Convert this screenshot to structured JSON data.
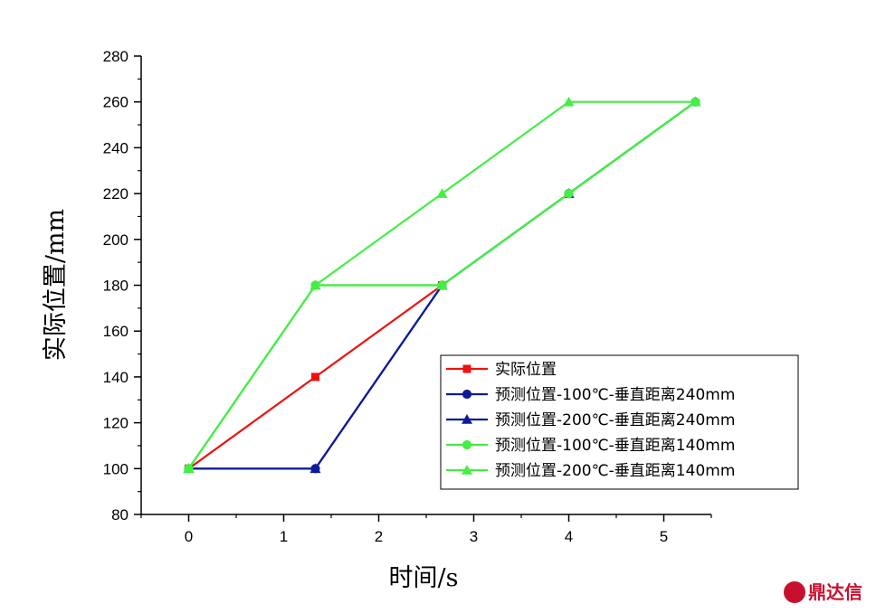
{
  "chart_data": {
    "type": "line",
    "xlabel": "时间/s",
    "ylabel": "实际位置/mm",
    "xlim": [
      -0.5,
      5.5
    ],
    "ylim": [
      80,
      280
    ],
    "xticks": [
      0,
      1,
      2,
      3,
      4,
      5
    ],
    "yticks": [
      80,
      100,
      120,
      140,
      160,
      180,
      200,
      220,
      240,
      260,
      280
    ],
    "legend_position": "bottom-right",
    "series": [
      {
        "name": "实际位置",
        "color": "#ee1111",
        "marker": "square",
        "x": [
          0,
          1.333,
          2.667
        ],
        "y": [
          100,
          140,
          180
        ]
      },
      {
        "name": "预测位置-100℃-垂直距离240mm",
        "color": "#0d1b99",
        "marker": "circle",
        "x": [
          0,
          1.333,
          2.667,
          4.0,
          5.333
        ],
        "y": [
          100,
          100,
          180,
          220,
          260
        ]
      },
      {
        "name": "预测位置-200℃-垂直距离240mm",
        "color": "#0d1b99",
        "marker": "triangle",
        "x": [
          0,
          1.333,
          2.667,
          4.0,
          5.333
        ],
        "y": [
          100,
          100,
          180,
          220,
          260
        ]
      },
      {
        "name": "预测位置-100℃-垂直距离140mm",
        "color": "#44ee44",
        "marker": "circle",
        "x": [
          0,
          1.333,
          2.667,
          4.0,
          5.333
        ],
        "y": [
          100,
          180,
          180,
          220,
          260
        ]
      },
      {
        "name": "预测位置-200℃-垂直距离140mm",
        "color": "#44ee44",
        "marker": "triangle",
        "x": [
          0,
          1.333,
          2.667,
          4.0,
          5.333,
          2.667,
          1.333
        ],
        "y": [
          100,
          180,
          220,
          260,
          260,
          180,
          180
        ]
      }
    ]
  },
  "watermark": {
    "text": "鼎达信",
    "color": "#c8102e"
  }
}
